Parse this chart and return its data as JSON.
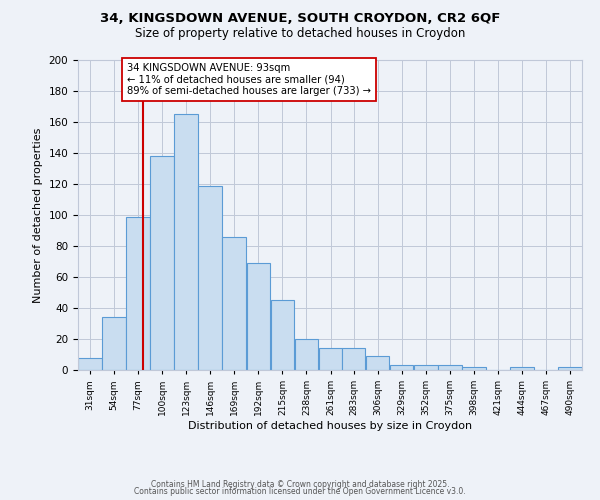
{
  "title_line1": "34, KINGSDOWN AVENUE, SOUTH CROYDON, CR2 6QF",
  "title_line2": "Size of property relative to detached houses in Croydon",
  "xlabel": "Distribution of detached houses by size in Croydon",
  "ylabel": "Number of detached properties",
  "bin_labels": [
    "31sqm",
    "54sqm",
    "77sqm",
    "100sqm",
    "123sqm",
    "146sqm",
    "169sqm",
    "192sqm",
    "215sqm",
    "238sqm",
    "261sqm",
    "283sqm",
    "306sqm",
    "329sqm",
    "352sqm",
    "375sqm",
    "398sqm",
    "421sqm",
    "444sqm",
    "467sqm",
    "490sqm"
  ],
  "bin_edges": [
    31,
    54,
    77,
    100,
    123,
    146,
    169,
    192,
    215,
    238,
    261,
    283,
    306,
    329,
    352,
    375,
    398,
    421,
    444,
    467,
    490
  ],
  "counts": [
    8,
    34,
    99,
    138,
    165,
    119,
    86,
    69,
    45,
    20,
    14,
    14,
    9,
    3,
    3,
    3,
    2,
    0,
    2,
    0,
    2
  ],
  "bar_facecolor": "#c9ddf0",
  "bar_edgecolor": "#5b9bd5",
  "vline_x": 93,
  "vline_color": "#cc0000",
  "annotation_line1": "34 KINGSDOWN AVENUE: 93sqm",
  "annotation_line2": "← 11% of detached houses are smaller (94)",
  "annotation_line3": "89% of semi-detached houses are larger (733) →",
  "annotation_box_edgecolor": "#cc0000",
  "annotation_box_facecolor": "white",
  "ylim": [
    0,
    200
  ],
  "yticks": [
    0,
    20,
    40,
    60,
    80,
    100,
    120,
    140,
    160,
    180,
    200
  ],
  "grid_color": "#c0c8d8",
  "background_color": "#eef2f8",
  "footer_line1": "Contains HM Land Registry data © Crown copyright and database right 2025.",
  "footer_line2": "Contains public sector information licensed under the Open Government Licence v3.0."
}
